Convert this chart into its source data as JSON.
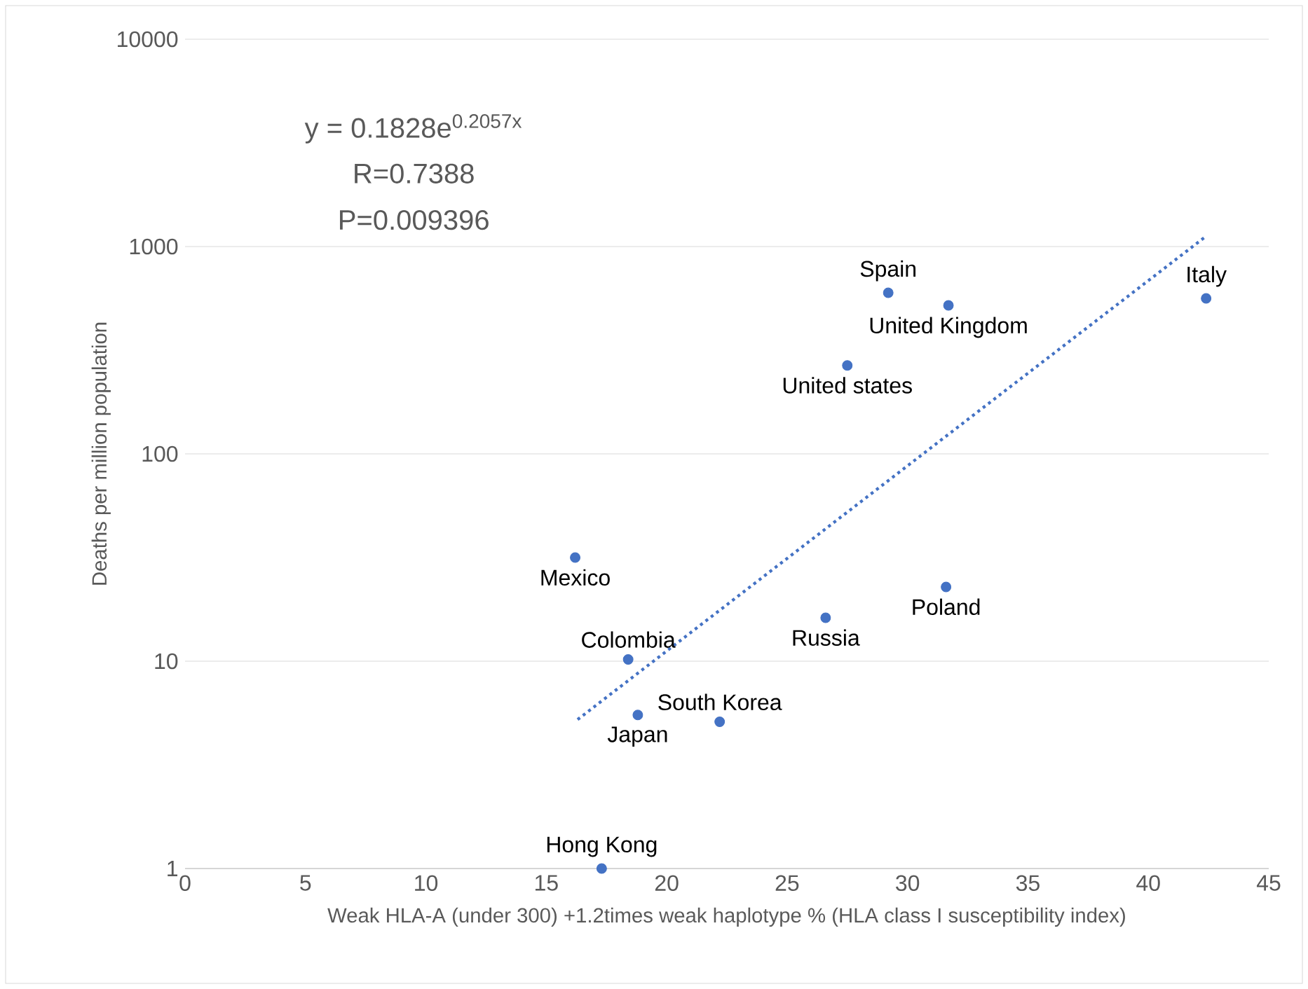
{
  "chart_data": {
    "type": "scatter",
    "xlabel": "Weak HLA-A (under 300) +1.2times weak haplotype % (HLA class I susceptibility index)",
    "ylabel": "Deaths per million population",
    "xlim": [
      0,
      45
    ],
    "xticks": [
      0,
      5,
      10,
      15,
      20,
      25,
      30,
      35,
      40,
      45
    ],
    "ylim": [
      1,
      10000
    ],
    "yticks": [
      1,
      10,
      100,
      1000,
      10000
    ],
    "log": "y",
    "grid": "y",
    "marker": "circle",
    "series": [
      {
        "color": "#4472c4",
        "x": [
          29.2,
          31.7,
          42.4,
          27.5,
          16.2,
          31.6,
          26.6,
          18.4,
          18.8,
          22.2,
          17.3
        ],
        "values": [
          598,
          520,
          562,
          267,
          31.6,
          22.8,
          16.2,
          10.2,
          5.5,
          5.1,
          1.0
        ]
      },
      {
        "type": "line",
        "color": "#4472c4",
        "line_style": "dotted",
        "marker": "none",
        "x": [
          16.3,
          42.4
        ],
        "values": [
          5.23,
          1122
        ]
      }
    ],
    "annotations": [
      "y = 0.1828e$^{0.2057x}$",
      "R=0.7388",
      "P=0.009396",
      {
        "text": "Spain",
        "x": 29.2,
        "y": 598
      },
      {
        "text": "United Kingdom",
        "x": 31.7,
        "y": 520
      },
      {
        "text": "Italy",
        "x": 42.4,
        "y": 562
      },
      {
        "text": "United states",
        "x": 27.5,
        "y": 267
      },
      {
        "text": "Mexico",
        "x": 16.2,
        "y": 31.6
      },
      {
        "text": "Poland",
        "x": 31.6,
        "y": 22.8
      },
      {
        "text": "Russia",
        "x": 26.6,
        "y": 16.2
      },
      {
        "text": "Colombia",
        "x": 18.4,
        "y": 10.2
      },
      {
        "text": "Japan",
        "x": 18.8,
        "y": 5.5
      },
      {
        "text": "South Korea",
        "x": 22.2,
        "y": 5.1
      },
      {
        "text": "Hong Kong",
        "x": 17.3,
        "y": 1.0
      }
    ]
  }
}
